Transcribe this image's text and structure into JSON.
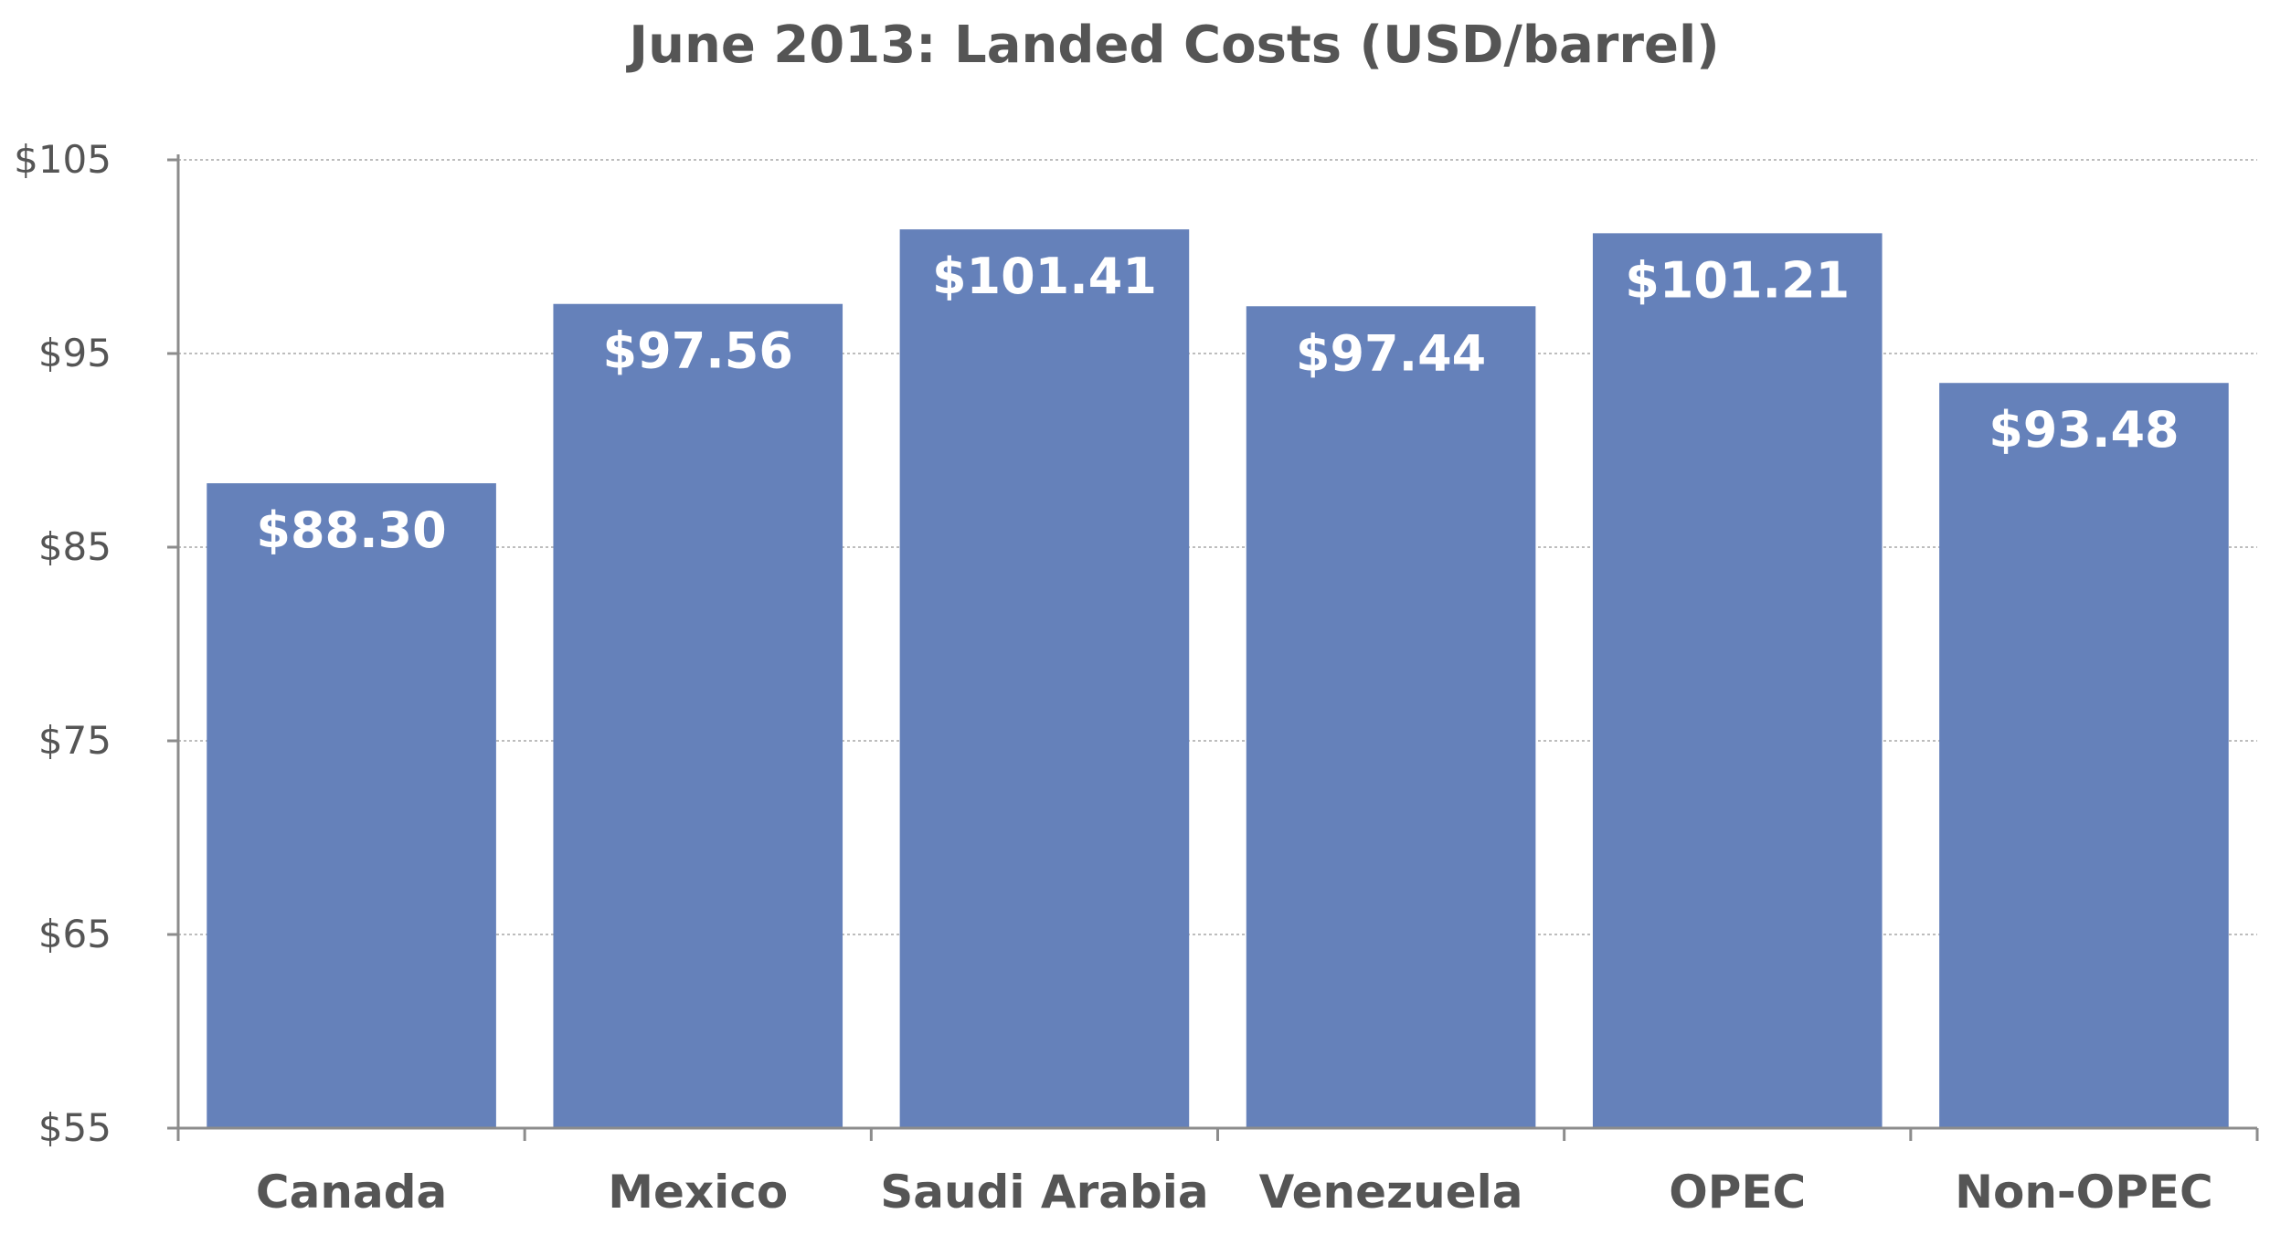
{
  "chart_data": {
    "type": "bar",
    "title": "June 2013: Landed Costs (USD/barrel)",
    "xlabel": "",
    "ylabel": "",
    "categories": [
      "Canada",
      "Mexico",
      "Saudi Arabia",
      "Venezuela",
      "OPEC",
      "Non-OPEC"
    ],
    "values": [
      88.3,
      97.56,
      101.41,
      97.44,
      101.21,
      93.48
    ],
    "value_labels": [
      "$88.30",
      "$97.56",
      "$101.41",
      "$97.44",
      "$101.21",
      "$93.48"
    ],
    "ylim": [
      55,
      105
    ],
    "y_ticks": [
      105,
      95,
      85,
      75,
      65,
      55
    ],
    "y_tick_labels": [
      "$105",
      "$95",
      "$85",
      "$75",
      "$65",
      "$55"
    ],
    "grid": true,
    "legend": "none",
    "colors": {
      "bar": "#6581BA",
      "axis": "#8c8c8c",
      "grid": "#bdbdbd",
      "text": "#555555",
      "data_label": "#ffffff"
    }
  }
}
